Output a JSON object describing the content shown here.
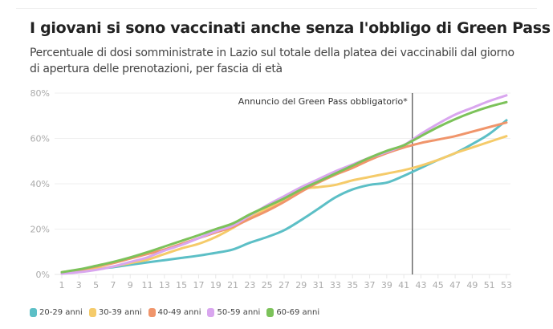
{
  "title": "I giovani si sono vaccinati anche senza l'obbligo di Green Pass",
  "subtitle": "Percentuale di dosi somministrate in Lazio sul totale della platea dei vaccinabili dal giorno di apertura delle prenotazioni, per fascia di età",
  "chart_data": {
    "type": "line",
    "title": "I giovani si sono vaccinati anche senza l'obbligo di Green Pass",
    "xlabel": "",
    "ylabel": "",
    "x": [
      1,
      3,
      5,
      7,
      9,
      11,
      13,
      15,
      17,
      19,
      21,
      23,
      25,
      27,
      29,
      31,
      33,
      35,
      37,
      39,
      41,
      43,
      45,
      47,
      49,
      51,
      53
    ],
    "xticks": [
      "1",
      "3",
      "5",
      "7",
      "9",
      "11",
      "13",
      "15",
      "17",
      "19",
      "21",
      "23",
      "25",
      "27",
      "29",
      "31",
      "33",
      "35",
      "37",
      "39",
      "41",
      "43",
      "45",
      "47",
      "49",
      "51",
      "53"
    ],
    "xlim": [
      1,
      53
    ],
    "ylim": [
      0,
      80
    ],
    "yticks": [
      0,
      20,
      40,
      60,
      80
    ],
    "ytick_labels": [
      "0%",
      "20%",
      "40%",
      "60%",
      "80%"
    ],
    "grid": true,
    "legend_position": "bottom",
    "annotation": {
      "x": 42,
      "text": "Annuncio del Green Pass obbligatorio*"
    },
    "series": [
      {
        "name": "20-29 anni",
        "color": "#5cbfc6",
        "values": [
          0.5,
          1.5,
          2.5,
          3.2,
          4.3,
          5.3,
          6.3,
          7.3,
          8.3,
          9.5,
          11,
          14,
          16.5,
          19.5,
          24,
          29,
          34,
          37.5,
          39.5,
          40.5,
          43.5,
          47,
          50.5,
          53.5,
          57.5,
          62,
          68
        ]
      },
      {
        "name": "30-39 anni",
        "color": "#f5cb6a",
        "values": [
          0.5,
          1.5,
          2.5,
          3.5,
          5,
          6.5,
          9,
          11.5,
          13.5,
          16.5,
          20.5,
          25,
          29,
          33,
          37.5,
          38.5,
          39.5,
          41.5,
          43,
          44.5,
          46,
          48,
          50.5,
          53.5,
          56,
          58.5,
          61
        ]
      },
      {
        "name": "40-49 anni",
        "color": "#f0956b",
        "values": [
          1,
          2,
          3.5,
          5,
          7,
          9,
          11,
          13.5,
          16,
          18.5,
          21,
          24.5,
          28,
          32,
          36.5,
          40.5,
          44,
          47,
          50.5,
          53.5,
          56,
          58,
          59.5,
          61,
          63,
          65,
          67
        ]
      },
      {
        "name": "50-59 anni",
        "color": "#d9a6ef",
        "values": [
          0.3,
          1,
          2,
          3.5,
          5.5,
          7.5,
          10.5,
          13,
          16,
          19,
          21.5,
          26,
          30.5,
          34.5,
          38.5,
          42,
          45.5,
          48.5,
          51.5,
          54,
          57,
          62,
          66.5,
          70.5,
          73.5,
          76.5,
          79
        ]
      },
      {
        "name": "60-69 anni",
        "color": "#7cc25a",
        "values": [
          1,
          2.2,
          3.8,
          5.5,
          7.5,
          9.8,
          12.3,
          14.8,
          17.3,
          20,
          22.5,
          26.5,
          30,
          33.5,
          37.5,
          41,
          44.5,
          48,
          51.5,
          54.5,
          57,
          61,
          65,
          68.5,
          71.5,
          74,
          76
        ]
      }
    ]
  }
}
